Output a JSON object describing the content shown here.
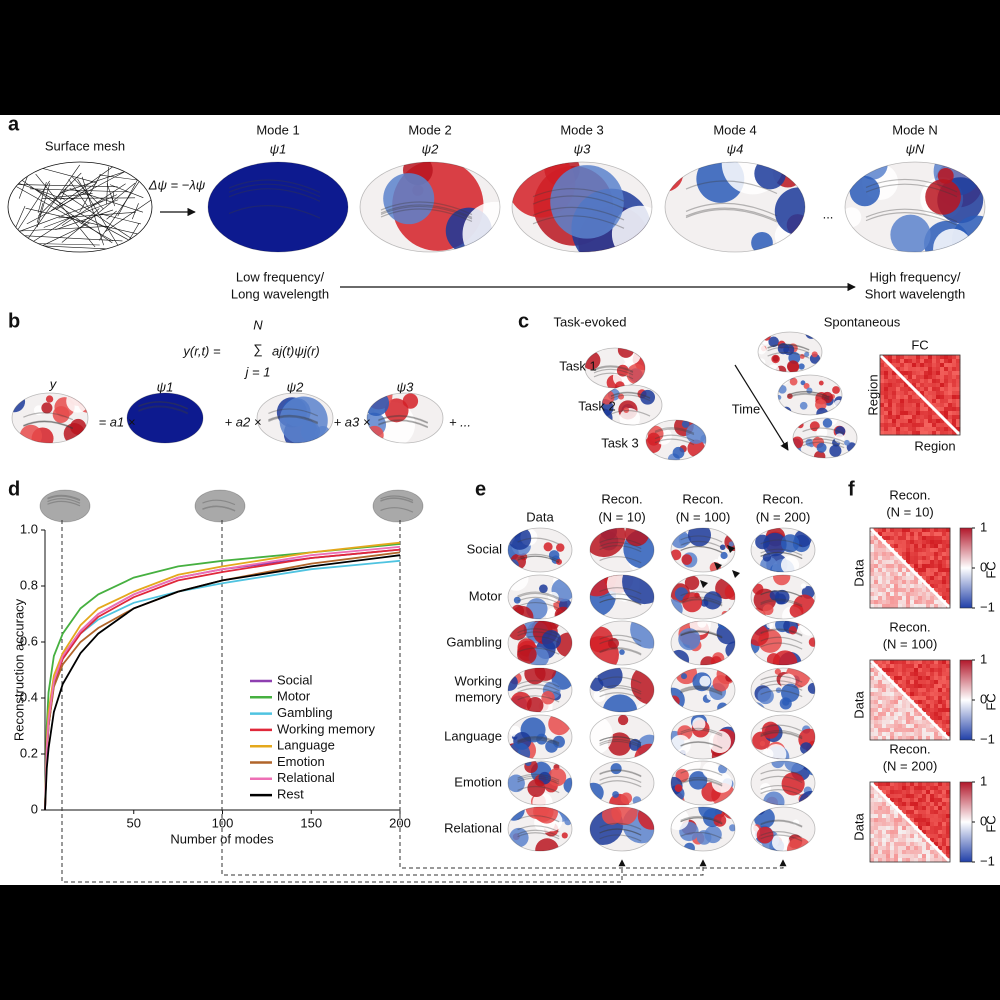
{
  "panel_labels": [
    "a",
    "b",
    "c",
    "d",
    "e",
    "f"
  ],
  "panel_a": {
    "mesh_label": "Surface mesh",
    "equation": "Δψ = −λψ",
    "modes": [
      {
        "title": "Mode 1",
        "symbol": "ψ1"
      },
      {
        "title": "Mode 2",
        "symbol": "ψ2"
      },
      {
        "title": "Mode 3",
        "symbol": "ψ3"
      },
      {
        "title": "Mode 4",
        "symbol": "ψ4"
      },
      {
        "title": "Mode N",
        "symbol": "ψN"
      }
    ],
    "ellipsis": "...",
    "low": [
      "Low frequency/",
      "Long wavelength"
    ],
    "high": [
      "High frequency/",
      "Short wavelength"
    ]
  },
  "panel_b": {
    "equation_lhs": "y(r,t) =",
    "sum_top": "N",
    "sum": "∑",
    "sum_bottom": "j = 1",
    "equation_rhs": "aj(t)ψj(r)",
    "y_label": "y",
    "psi_labels": [
      "ψ1",
      "ψ2",
      "ψ3"
    ],
    "terms": [
      "= a1 ×",
      "+ a2 ×",
      "+ a3 ×",
      "+ ..."
    ]
  },
  "panel_c": {
    "task_title": "Task-evoked",
    "spont_title": "Spontaneous",
    "tasks": [
      "Task 1",
      "Task 2",
      "Task 3"
    ],
    "time": "Time",
    "fc": "FC",
    "region_y": "Region",
    "region_x": "Region"
  },
  "chart_data": {
    "type": "line",
    "xlabel": "Number of modes",
    "ylabel": "Reconstruction accuracy",
    "xlim": [
      0,
      200
    ],
    "ylim": [
      0,
      1
    ],
    "xticks": [
      50,
      100,
      150,
      200
    ],
    "yticks": [
      0,
      0.2,
      0.4,
      0.6,
      0.8,
      {
        "value": 1,
        "label": "1.0"
      }
    ],
    "x": [
      0,
      1,
      2,
      5,
      10,
      20,
      30,
      50,
      75,
      100,
      150,
      200
    ],
    "series": [
      {
        "name": "Social",
        "color": "#8e3fb0",
        "values": [
          0,
          0.2,
          0.3,
          0.45,
          0.55,
          0.64,
          0.7,
          0.77,
          0.83,
          0.86,
          0.9,
          0.93
        ]
      },
      {
        "name": "Motor",
        "color": "#46b040",
        "values": [
          0,
          0.3,
          0.42,
          0.55,
          0.63,
          0.72,
          0.77,
          0.83,
          0.87,
          0.89,
          0.92,
          0.95
        ]
      },
      {
        "name": "Gambling",
        "color": "#4fc3e0",
        "values": [
          0,
          0.2,
          0.3,
          0.45,
          0.54,
          0.63,
          0.68,
          0.74,
          0.78,
          0.81,
          0.86,
          0.89
        ]
      },
      {
        "name": "Working memory",
        "color": "#e0283a",
        "values": [
          0,
          0.2,
          0.3,
          0.45,
          0.54,
          0.63,
          0.69,
          0.76,
          0.82,
          0.85,
          0.9,
          0.93
        ]
      },
      {
        "name": "Language",
        "color": "#e4a81c",
        "values": [
          0,
          0.25,
          0.35,
          0.48,
          0.56,
          0.66,
          0.72,
          0.78,
          0.84,
          0.87,
          0.92,
          0.955
        ]
      },
      {
        "name": "Emotion",
        "color": "#b0652a",
        "values": [
          0,
          0.2,
          0.3,
          0.44,
          0.52,
          0.6,
          0.65,
          0.72,
          0.78,
          0.82,
          0.88,
          0.92
        ]
      },
      {
        "name": "Relational",
        "color": "#ee6fb5",
        "values": [
          0,
          0.22,
          0.32,
          0.46,
          0.55,
          0.64,
          0.7,
          0.77,
          0.83,
          0.86,
          0.91,
          0.94
        ]
      },
      {
        "name": "Rest",
        "color": "#000000",
        "values": [
          0,
          0.15,
          0.22,
          0.35,
          0.45,
          0.56,
          0.63,
          0.72,
          0.78,
          0.82,
          0.87,
          0.91
        ]
      }
    ]
  },
  "panel_e": {
    "columns": [
      [
        "Data"
      ],
      [
        "Recon.",
        "(N = 10)"
      ],
      [
        "Recon.",
        "(N = 100)"
      ],
      [
        "Recon.",
        "(N = 200)"
      ]
    ],
    "rows": [
      [
        "Social"
      ],
      [
        "Motor"
      ],
      [
        "Gambling"
      ],
      [
        "Working",
        "memory"
      ],
      [
        "Language"
      ],
      [
        "Emotion"
      ],
      [
        "Relational"
      ]
    ]
  },
  "panel_f": {
    "matrices": [
      {
        "title": "Recon.",
        "subtitle": "(N = 10)",
        "row_label": "Data",
        "colorbar": {
          "ticks": [
            1,
            0,
            {
              "value": -1,
              "label": "−1"
            }
          ],
          "label": "FC"
        }
      },
      {
        "title": "Recon.",
        "subtitle": "(N = 100)",
        "row_label": "Data",
        "colorbar": {
          "ticks": [
            1,
            0,
            {
              "value": -1,
              "label": "−1"
            }
          ],
          "label": "FC"
        }
      },
      {
        "title": "Recon.",
        "subtitle": "(N = 200)",
        "row_label": "Data",
        "colorbar": {
          "ticks": [
            1,
            0,
            {
              "value": -1,
              "label": "−1"
            }
          ],
          "label": "FC"
        }
      }
    ]
  }
}
